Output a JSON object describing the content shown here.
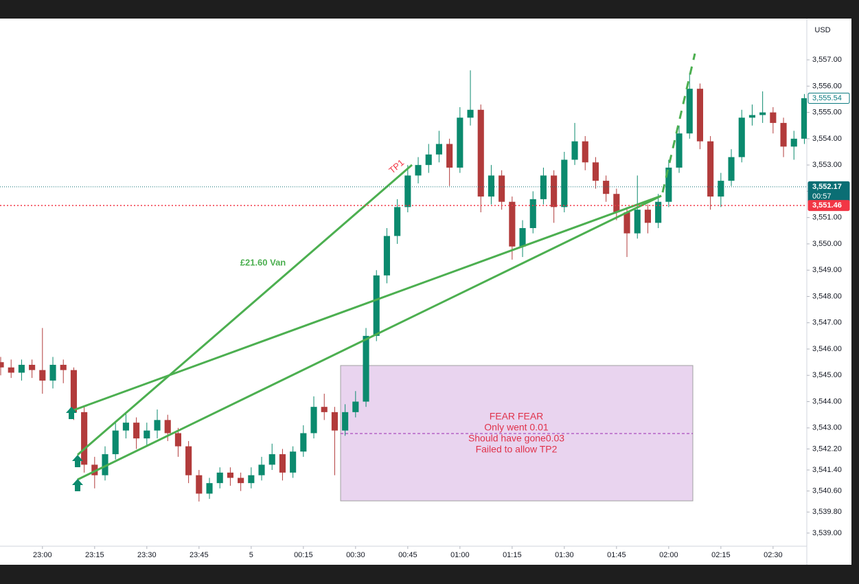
{
  "chart_data": {
    "type": "candlestick",
    "currency": "USD",
    "up_color": "#0b8a6e",
    "down_color": "#b23b3b",
    "grid": false,
    "xlim": [
      -12.2,
      219.7
    ],
    "xticks": [
      {
        "value": 0,
        "label": "23:00"
      },
      {
        "value": 15,
        "label": "23:15"
      },
      {
        "value": 30,
        "label": "23:30"
      },
      {
        "value": 45,
        "label": "23:45"
      },
      {
        "value": 60,
        "label": "5"
      },
      {
        "value": 75,
        "label": "00:15"
      },
      {
        "value": 90,
        "label": "00:30"
      },
      {
        "value": 105,
        "label": "00:45"
      },
      {
        "value": 120,
        "label": "01:00"
      },
      {
        "value": 135,
        "label": "01:15"
      },
      {
        "value": 150,
        "label": "01:30"
      },
      {
        "value": 165,
        "label": "01:45"
      },
      {
        "value": 180,
        "label": "02:00"
      },
      {
        "value": 195,
        "label": "02:15"
      },
      {
        "value": 210,
        "label": "02:30"
      }
    ],
    "ylim": [
      3538.5,
      3558.57
    ],
    "yticks": [
      {
        "value": 3557,
        "label": "3,557.00"
      },
      {
        "value": 3556,
        "label": "3,556.00"
      },
      {
        "value": 3555,
        "label": "3,555.00"
      },
      {
        "value": 3554,
        "label": "3,554.00"
      },
      {
        "value": 3553,
        "label": "3,553.00"
      },
      {
        "value": 3552,
        "label": "3,552.00"
      },
      {
        "value": 3551,
        "label": "3,551.00"
      },
      {
        "value": 3550,
        "label": "3,550.00"
      },
      {
        "value": 3549,
        "label": "3,549.00"
      },
      {
        "value": 3548,
        "label": "3,548.00"
      },
      {
        "value": 3547,
        "label": "3,547.00"
      },
      {
        "value": 3546,
        "label": "3,546.00"
      },
      {
        "value": 3545,
        "label": "3,545.00"
      },
      {
        "value": 3544,
        "label": "3,544.00"
      },
      {
        "value": 3543,
        "label": "3,543.00"
      },
      {
        "value": 3542.2,
        "label": "3,542.20"
      },
      {
        "value": 3541.4,
        "label": "3,541.40"
      },
      {
        "value": 3540.6,
        "label": "3,540.60"
      },
      {
        "value": 3539.8,
        "label": "3,539.80"
      },
      {
        "value": 3539,
        "label": "3,539.00"
      }
    ],
    "x": [
      -12,
      -9,
      -6,
      -3,
      0,
      3,
      6,
      9,
      12,
      15,
      18,
      21,
      24,
      27,
      30,
      33,
      36,
      39,
      42,
      45,
      48,
      51,
      54,
      57,
      60,
      63,
      66,
      69,
      72,
      75,
      78,
      81,
      84,
      87,
      90,
      93,
      96,
      99,
      102,
      105,
      108,
      111,
      114,
      117,
      120,
      123,
      126,
      129,
      132,
      135,
      138,
      141,
      144,
      147,
      150,
      153,
      156,
      159,
      162,
      165,
      168,
      171,
      174,
      177,
      180,
      183,
      186,
      189,
      192,
      195,
      198,
      201,
      204,
      207,
      210,
      213,
      216,
      219
    ],
    "ohlc": [
      [
        3545.5,
        3545.7,
        3545.0,
        3545.3
      ],
      [
        3545.3,
        3545.6,
        3544.9,
        3545.1
      ],
      [
        3545.1,
        3545.6,
        3544.8,
        3545.4
      ],
      [
        3545.4,
        3545.6,
        3544.9,
        3545.2
      ],
      [
        3545.2,
        3546.8,
        3544.3,
        3544.8
      ],
      [
        3544.8,
        3545.7,
        3544.5,
        3545.4
      ],
      [
        3545.4,
        3545.6,
        3544.7,
        3545.2
      ],
      [
        3545.2,
        3545.3,
        3543.3,
        3543.6
      ],
      [
        3543.6,
        3543.8,
        3541.3,
        3541.6
      ],
      [
        3541.6,
        3541.9,
        3540.7,
        3541.2
      ],
      [
        3541.2,
        3542.3,
        3541.0,
        3542.0
      ],
      [
        3542.0,
        3543.2,
        3541.8,
        3542.9
      ],
      [
        3542.9,
        3543.6,
        3542.6,
        3543.2
      ],
      [
        3543.2,
        3543.4,
        3542.2,
        3542.6
      ],
      [
        3542.6,
        3543.2,
        3542.3,
        3542.9
      ],
      [
        3542.9,
        3543.7,
        3542.6,
        3543.3
      ],
      [
        3543.3,
        3543.5,
        3542.5,
        3542.8
      ],
      [
        3542.8,
        3543.0,
        3541.9,
        3542.3
      ],
      [
        3542.3,
        3542.5,
        3540.9,
        3541.2
      ],
      [
        3541.2,
        3541.4,
        3540.2,
        3540.5
      ],
      [
        3540.5,
        3541.1,
        3540.3,
        3540.9
      ],
      [
        3540.9,
        3541.5,
        3540.7,
        3541.3
      ],
      [
        3541.3,
        3541.5,
        3540.8,
        3541.1
      ],
      [
        3541.1,
        3541.3,
        3540.6,
        3540.9
      ],
      [
        3540.9,
        3541.5,
        3540.7,
        3541.2
      ],
      [
        3541.2,
        3541.9,
        3541.0,
        3541.6
      ],
      [
        3541.6,
        3542.4,
        3541.4,
        3542.0
      ],
      [
        3542.0,
        3542.2,
        3541.0,
        3541.3
      ],
      [
        3541.3,
        3542.3,
        3541.1,
        3542.1
      ],
      [
        3542.1,
        3543.1,
        3541.9,
        3542.8
      ],
      [
        3542.8,
        3544.2,
        3542.6,
        3543.8
      ],
      [
        3543.8,
        3544.3,
        3543.3,
        3543.6
      ],
      [
        3543.6,
        3543.8,
        3541.2,
        3542.9
      ],
      [
        3542.9,
        3543.9,
        3542.7,
        3543.6
      ],
      [
        3543.6,
        3544.4,
        3543.4,
        3544.0
      ],
      [
        3544.0,
        3546.8,
        3543.8,
        3546.5
      ],
      [
        3546.5,
        3549.0,
        3546.3,
        3548.8
      ],
      [
        3548.8,
        3550.6,
        3548.5,
        3550.3
      ],
      [
        3550.3,
        3551.7,
        3550.0,
        3551.4
      ],
      [
        3551.4,
        3553.0,
        3551.2,
        3552.6
      ],
      [
        3552.6,
        3553.3,
        3552.3,
        3553.0
      ],
      [
        3553.0,
        3553.8,
        3552.7,
        3553.4
      ],
      [
        3553.4,
        3554.3,
        3553.1,
        3553.8
      ],
      [
        3553.8,
        3554.0,
        3552.2,
        3552.9
      ],
      [
        3552.9,
        3555.2,
        3552.7,
        3554.8
      ],
      [
        3554.8,
        3556.6,
        3554.5,
        3555.1
      ],
      [
        3555.1,
        3555.3,
        3551.2,
        3551.8
      ],
      [
        3551.8,
        3553.0,
        3551.5,
        3552.6
      ],
      [
        3552.6,
        3552.8,
        3551.3,
        3551.6
      ],
      [
        3551.6,
        3551.8,
        3549.4,
        3549.9
      ],
      [
        3549.9,
        3550.9,
        3549.5,
        3550.6
      ],
      [
        3550.6,
        3552.0,
        3550.4,
        3551.7
      ],
      [
        3551.7,
        3552.9,
        3551.5,
        3552.6
      ],
      [
        3552.6,
        3552.8,
        3550.8,
        3551.4
      ],
      [
        3551.4,
        3553.5,
        3551.2,
        3553.2
      ],
      [
        3553.2,
        3554.6,
        3553.0,
        3553.9
      ],
      [
        3553.9,
        3554.1,
        3552.8,
        3553.1
      ],
      [
        3553.1,
        3553.3,
        3552.1,
        3552.4
      ],
      [
        3552.4,
        3552.6,
        3551.6,
        3551.9
      ],
      [
        3551.9,
        3552.1,
        3550.9,
        3551.2
      ],
      [
        3551.2,
        3551.4,
        3549.5,
        3550.4
      ],
      [
        3550.4,
        3552.6,
        3550.2,
        3551.3
      ],
      [
        3551.3,
        3551.5,
        3550.4,
        3550.8
      ],
      [
        3550.8,
        3551.9,
        3550.6,
        3551.6
      ],
      [
        3551.6,
        3553.2,
        3551.4,
        3552.9
      ],
      [
        3552.9,
        3554.5,
        3552.7,
        3554.2
      ],
      [
        3554.2,
        3556.5,
        3554.0,
        3555.9
      ],
      [
        3555.9,
        3556.1,
        3553.6,
        3553.9
      ],
      [
        3553.9,
        3554.1,
        3551.3,
        3551.8
      ],
      [
        3551.8,
        3552.7,
        3551.4,
        3552.4
      ],
      [
        3552.4,
        3553.6,
        3552.2,
        3553.3
      ],
      [
        3553.3,
        3555.1,
        3553.1,
        3554.8
      ],
      [
        3554.8,
        3555.3,
        3554.5,
        3554.9
      ],
      [
        3554.9,
        3555.8,
        3554.6,
        3555.0
      ],
      [
        3555.0,
        3555.2,
        3554.2,
        3554.6
      ],
      [
        3554.6,
        3554.8,
        3553.3,
        3553.7
      ],
      [
        3553.7,
        3554.3,
        3553.2,
        3554.0
      ],
      [
        3554.0,
        3555.7,
        3553.8,
        3555.54
      ]
    ],
    "price_labels": [
      {
        "value": 3555.54,
        "label": "3,555.54",
        "style": "outline",
        "color": "#0b7a80"
      },
      {
        "value": 3552.17,
        "label": "3,552.17",
        "countdown": "00:57",
        "style": "line",
        "color": "#0b6e74"
      },
      {
        "value": 3551.46,
        "label": "3,551.46",
        "style": "line",
        "color": "#f23645"
      }
    ],
    "annotations": {
      "profit": "£21.60 Van",
      "target": "TP1",
      "box_lines": [
        "FEAR FEAR",
        "Only went 0.01",
        "Should have gone0.03",
        "Failed to allow TP2"
      ]
    }
  }
}
